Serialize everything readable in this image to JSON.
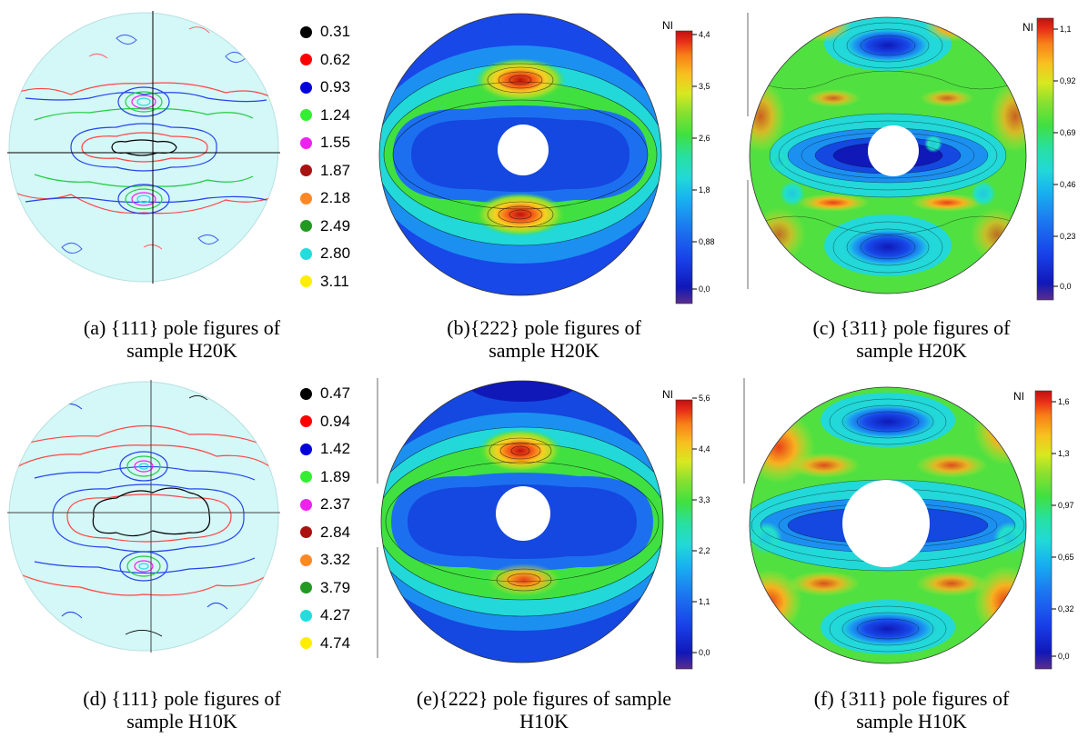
{
  "colors": {
    "legend_dots": [
      "#000000",
      "#ff0000",
      "#0000dd",
      "#33ee33",
      "#ee22ee",
      "#aa1111",
      "#ff8822",
      "#229922",
      "#22dddd",
      "#ffee00"
    ],
    "colorbar": [
      "#5b2d8c",
      "#1018b8",
      "#1840e8",
      "#1c78f0",
      "#18b0f0",
      "#22d8d8",
      "#28e0a0",
      "#40e040",
      "#88e030",
      "#d8e820",
      "#f8c020",
      "#f88018",
      "#e83018",
      "#c01010"
    ],
    "pf111_background": "#d4f7f7"
  },
  "panels": {
    "a": {
      "caption_line1": "(a) {111} pole figures of",
      "caption_line2": "sample H20K",
      "legend": [
        "0.31",
        "0.62",
        "0.93",
        "1.24",
        "1.55",
        "1.87",
        "2.18",
        "2.49",
        "2.80",
        "3.11"
      ]
    },
    "b": {
      "caption_line1": "(b){222} pole figures of",
      "caption_line2": "sample H20K",
      "colorbar_title": "NI",
      "colorbar_ticks": [
        "4,4",
        "3,5",
        "2,6",
        "1,8",
        "0,88",
        "0,0"
      ]
    },
    "c": {
      "caption_line1": "(c) {311} pole figures of",
      "caption_line2": "sample H20K",
      "colorbar_title": "NI",
      "colorbar_ticks": [
        "1,1",
        "0,92",
        "0,69",
        "0,46",
        "0,23",
        "0,0"
      ]
    },
    "d": {
      "caption_line1": "(d) {111} pole figures of",
      "caption_line2": "sample H10K",
      "legend": [
        "0.47",
        "0.94",
        "1.42",
        "1.89",
        "2.37",
        "2.84",
        "3.32",
        "3.79",
        "4.27",
        "4.74"
      ]
    },
    "e": {
      "caption_line1": "(e){222} pole figures of sample",
      "caption_line2": "H10K",
      "colorbar_title": "NI",
      "colorbar_ticks": [
        "5,6",
        "4,4",
        "3,3",
        "2,2",
        "1,1",
        "0,0"
      ]
    },
    "f": {
      "caption_line1": "(f) {311} pole figures of",
      "caption_line2": "sample H10K",
      "colorbar_title": "NI",
      "colorbar_ticks": [
        "1,6",
        "1,3",
        "0,97",
        "0,65",
        "0,32",
        "0,0"
      ]
    }
  }
}
